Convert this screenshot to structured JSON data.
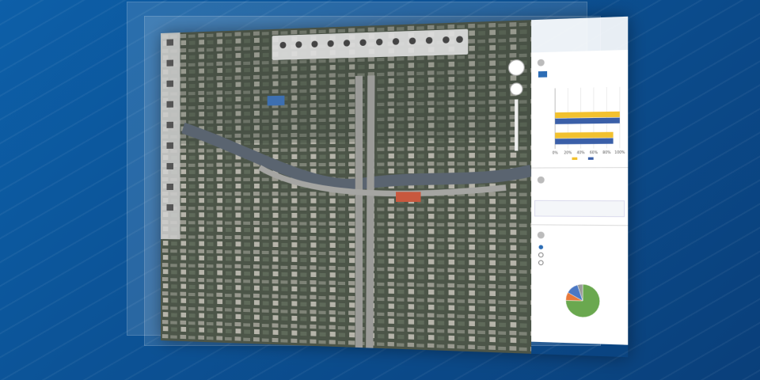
{
  "chart_data": [
    {
      "type": "bar",
      "orientation": "horizontal",
      "categories": [
        null,
        null,
        null
      ],
      "series": [
        {
          "color": "#f2c12e",
          "values": [
            null,
            100,
            90
          ]
        },
        {
          "color": "#3a5fa8",
          "values": [
            null,
            100,
            90
          ]
        }
      ],
      "xlim": [
        0,
        100
      ],
      "xticks": [
        {
          "value": 0,
          "label": "0%"
        },
        {
          "value": 20,
          "label": "20%"
        },
        {
          "value": 40,
          "label": "40%"
        },
        {
          "value": 60,
          "label": "60%"
        },
        {
          "value": 80,
          "label": "80%"
        },
        {
          "value": 100,
          "label": "100%"
        }
      ],
      "grid": true
    },
    {
      "type": "pie",
      "values": [
        75,
        8,
        12,
        5
      ],
      "colors": [
        "#6aa84f",
        "#e8793a",
        "#4a78c4",
        "#9a9a9a"
      ]
    }
  ]
}
